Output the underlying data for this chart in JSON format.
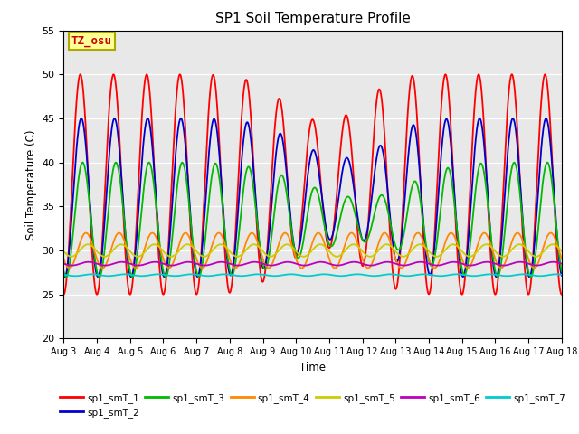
{
  "title": "SP1 Soil Temperature Profile",
  "xlabel": "Time",
  "ylabel": "Soil Temperature (C)",
  "ylim": [
    20,
    55
  ],
  "series_colors": {
    "sp1_smT_1": "#ff0000",
    "sp1_smT_2": "#0000cc",
    "sp1_smT_3": "#00bb00",
    "sp1_smT_4": "#ff8800",
    "sp1_smT_5": "#cccc00",
    "sp1_smT_6": "#bb00bb",
    "sp1_smT_7": "#00cccc"
  },
  "xtick_labels": [
    "Aug 3",
    "Aug 4",
    "Aug 5",
    "Aug 6",
    "Aug 7",
    "Aug 8",
    "Aug 9",
    "Aug 10",
    "Aug 11",
    "Aug 12",
    "Aug 13",
    "Aug 14",
    "Aug 15",
    "Aug 16",
    "Aug 17",
    "Aug 18"
  ],
  "annotation_text": "TZ_osu",
  "annotation_color": "#cc0000",
  "annotation_bg": "#ffff99",
  "annotation_border": "#aaaa00",
  "background_color": "#e8e8e8",
  "yticks": [
    20,
    25,
    30,
    35,
    40,
    45,
    50,
    55
  ],
  "n_days": 15,
  "points_per_day": 96,
  "legend_order": [
    "sp1_smT_1",
    "sp1_smT_2",
    "sp1_smT_3",
    "sp1_smT_4",
    "sp1_smT_5",
    "sp1_smT_6",
    "sp1_smT_7"
  ]
}
